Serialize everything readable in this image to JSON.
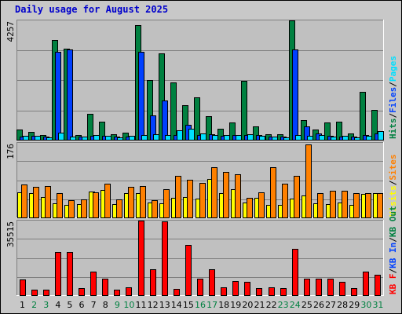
{
  "chart_data": {
    "title": "Daily usage for August 2025",
    "type": "bar",
    "categories": [
      "1",
      "2",
      "3",
      "4",
      "5",
      "6",
      "7",
      "8",
      "9",
      "10",
      "11",
      "12",
      "13",
      "14",
      "15",
      "16",
      "17",
      "18",
      "19",
      "20",
      "21",
      "22",
      "23",
      "24",
      "25",
      "26",
      "27",
      "28",
      "29",
      "30",
      "31"
    ],
    "weekend_days": [
      "2",
      "3",
      "9",
      "10",
      "16",
      "17",
      "23",
      "24",
      "30",
      "31"
    ],
    "colors": {
      "hits": "#008040",
      "files": "#0040ff",
      "pages": "#00e0ff",
      "visits": "#ffff00",
      "sites": "#ff8000",
      "kbin": "#008040",
      "kbout": "#0040ff",
      "kbf": "#ff0000",
      "weekday": "#000000",
      "weekend": "#008040",
      "title": "#0000cc"
    },
    "panels": [
      {
        "ymax_label": "4257",
        "ylim": [
          0,
          4257
        ],
        "legend": [
          {
            "text": "Hits",
            "color": "#008040"
          },
          {
            "text": "/",
            "color": "#000000"
          },
          {
            "text": "Files",
            "color": "#0040ff"
          },
          {
            "text": "/",
            "color": "#000000"
          },
          {
            "text": "Pages",
            "color": "#00e0ff"
          }
        ],
        "series": [
          {
            "name": "Hits",
            "color": "#008040",
            "values": [
              370,
              290,
              160,
              3560,
              3250,
              180,
              920,
              640,
              190,
              260,
              4100,
              2130,
              3080,
              2050,
              1240,
              1520,
              830,
              400,
              620,
              2100,
              480,
              200,
              190,
              4257,
              700,
              370,
              610,
              640,
              230,
              1720,
              1070
            ]
          },
          {
            "name": "Files",
            "color": "#0040ff",
            "values": [
              120,
              130,
              110,
              3150,
              3220,
              120,
              140,
              130,
              100,
              120,
              3150,
              870,
              1390,
              160,
              540,
              160,
              200,
              130,
              160,
              170,
              180,
              110,
              110,
              3230,
              470,
              230,
              150,
              110,
              110,
              160,
              230
            ]
          },
          {
            "name": "Pages",
            "color": "#00e0ff",
            "values": [
              150,
              150,
              90,
              250,
              100,
              110,
              160,
              150,
              80,
              150,
              180,
              200,
              170,
              330,
              380,
              220,
              180,
              160,
              170,
              190,
              150,
              100,
              80,
              160,
              150,
              160,
              110,
              150,
              90,
              150,
              300
            ]
          }
        ]
      },
      {
        "ymax_label": "176",
        "ylim": [
          0,
          176
        ],
        "legend": [
          {
            "text": "Visits",
            "color": "#ffff00"
          },
          {
            "text": "/",
            "color": "#000000"
          },
          {
            "text": "Sites",
            "color": "#ff8000"
          }
        ],
        "series": [
          {
            "name": "Visits",
            "color": "#ffff00",
            "values": [
              59,
              57,
              49,
              34,
              30,
              32,
              61,
              65,
              31,
              57,
              57,
              35,
              33,
              47,
              48,
              44,
              91,
              58,
              67,
              36,
              46,
              29,
              29,
              45,
              51,
              34,
              31,
              36,
              29,
              55,
              57
            ]
          },
          {
            "name": "Sites",
            "color": "#ff8000",
            "values": [
              78,
              73,
              75,
              57,
              40,
              42,
              60,
              80,
              43,
              73,
              74,
              40,
              67,
              98,
              88,
              81,
              119,
              108,
              101,
              47,
              59,
              118,
              79,
              99,
              172,
              57,
              63,
              63,
              57,
              57,
              57
            ]
          }
        ]
      },
      {
        "ymax_label": "35515",
        "ylim": [
          0,
          35515
        ],
        "legend": [
          {
            "text": "KB F",
            "color": "#ff0000"
          },
          {
            "text": "/",
            "color": "#000000"
          },
          {
            "text": "KB In",
            "color": "#0040ff"
          },
          {
            "text": "/",
            "color": "#000000"
          },
          {
            "text": "KB Out",
            "color": "#008040"
          }
        ],
        "series": [
          {
            "name": "KB F",
            "color": "#ff0000",
            "values": [
              7500,
              2700,
              2700,
              20600,
              20600,
              3300,
              11100,
              7900,
              2700,
              3600,
              35515,
              12200,
              35300,
              2900,
              23800,
              8000,
              12300,
              3800,
              6600,
              6200,
              3300,
              3600,
              3300,
              22100,
              7700,
              7700,
              7900,
              6500,
              3300,
              11100,
              9600
            ]
          }
        ]
      }
    ]
  }
}
